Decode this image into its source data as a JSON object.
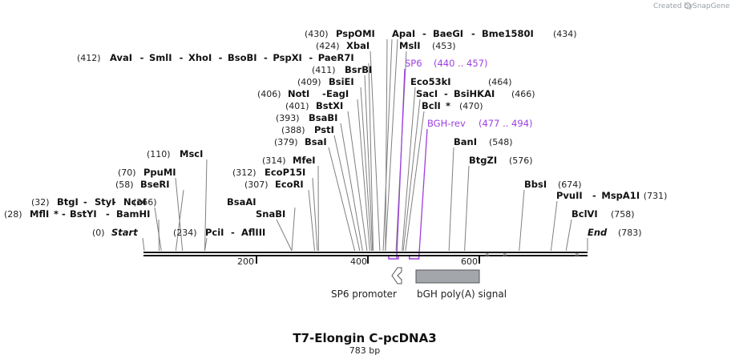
{
  "title": "T7-Elongin C-pcDNA3",
  "length_text": "783 bp",
  "watermark": {
    "prefix": "Created by",
    "brand": "SnapGene"
  },
  "backbone": {
    "start_label": "Start",
    "start_pos": "(0)",
    "end_label": "End",
    "end_pos": "(783)"
  },
  "ticks": [
    "200",
    "400",
    "600"
  ],
  "label_rows": [
    {
      "id": "r0",
      "items": [
        {
          "pos": "(430)"
        },
        {
          "name": "PspOMI"
        },
        {
          "name": "ApaI"
        },
        {
          "sep": "-"
        },
        {
          "name": "BaeGI"
        },
        {
          "sep": "-"
        },
        {
          "name": "Bme1580I"
        },
        {
          "pos": "(434)"
        }
      ]
    },
    {
      "id": "r1",
      "items": [
        {
          "pos": "(424)"
        },
        {
          "name": "XbaI"
        },
        {
          "name": "MslI"
        },
        {
          "pos": "(453)"
        }
      ]
    },
    {
      "id": "r2",
      "items": [
        {
          "pos": "(412)"
        },
        {
          "name": "AvaI"
        },
        {
          "sep": "-"
        },
        {
          "name": "SmlI"
        },
        {
          "sep": "-"
        },
        {
          "name": "XhoI"
        },
        {
          "sep": "-"
        },
        {
          "name": "BsoBI"
        },
        {
          "sep": "-"
        },
        {
          "name": "PspXI"
        },
        {
          "sep": "-"
        },
        {
          "name": "PaeR7I"
        }
      ]
    },
    {
      "id": "r3",
      "items": [
        {
          "pos": "(411)"
        },
        {
          "name": "BsrBI"
        }
      ]
    },
    {
      "id": "r4",
      "items": [
        {
          "pos": "(409)"
        },
        {
          "name": "BsiEI"
        },
        {
          "name": "Eco53kI"
        },
        {
          "pos": "(464)"
        }
      ]
    },
    {
      "id": "r5",
      "items": [
        {
          "pos": "(406)"
        },
        {
          "name": "NotI"
        },
        {
          "sep": "-"
        },
        {
          "name": "EagI"
        },
        {
          "name": "SacI"
        },
        {
          "sep": "-"
        },
        {
          "name": "BsiHKAI"
        },
        {
          "pos": "(466)"
        }
      ]
    },
    {
      "id": "r6",
      "items": [
        {
          "pos": "(401)"
        },
        {
          "name": "BstXI"
        },
        {
          "name": "BclI"
        },
        {
          "star": "*"
        },
        {
          "pos": "(470)"
        }
      ]
    },
    {
      "id": "r7",
      "items": [
        {
          "pos": "(393)"
        },
        {
          "name": "BsaBI"
        }
      ]
    },
    {
      "id": "r8",
      "items": [
        {
          "pos": "(388)"
        },
        {
          "name": "PstI"
        }
      ]
    },
    {
      "id": "r9",
      "items": [
        {
          "pos": "(379)"
        },
        {
          "name": "BsaI"
        },
        {
          "name": "BanI"
        },
        {
          "pos": "(548)"
        }
      ]
    },
    {
      "id": "r10",
      "items": [
        {
          "pos": "(110)"
        },
        {
          "name": "MscI"
        }
      ]
    },
    {
      "id": "r11",
      "items": [
        {
          "pos": "(314)"
        },
        {
          "name": "MfeI"
        },
        {
          "name": "BtgZI"
        },
        {
          "pos": "(576)"
        }
      ]
    },
    {
      "id": "r12",
      "items": [
        {
          "pos": "(70)"
        },
        {
          "name": "PpuMI"
        },
        {
          "pos": "(312)"
        },
        {
          "name": "EcoP15I"
        }
      ]
    },
    {
      "id": "r13",
      "items": [
        {
          "pos": "(58)"
        },
        {
          "name": "BseRI"
        },
        {
          "pos": "(307)"
        },
        {
          "name": "EcoRI"
        },
        {
          "name": "BbsI"
        },
        {
          "pos": "(674)"
        }
      ]
    },
    {
      "id": "r14",
      "items": [
        {
          "name": "PvuII"
        },
        {
          "sep": "-"
        },
        {
          "name": "MspA1I"
        },
        {
          "pos": "(731)"
        }
      ]
    },
    {
      "id": "r15",
      "items": [
        {
          "pos": "(32)"
        },
        {
          "name": "BtgI"
        },
        {
          "sep": "-"
        },
        {
          "name": "StyI"
        },
        {
          "sep": "-"
        },
        {
          "name": "NcoI"
        },
        {
          "pos": "(266)"
        },
        {
          "name": "BsaAI"
        }
      ]
    },
    {
      "id": "r16",
      "items": [
        {
          "pos": "(28)"
        },
        {
          "name": "MflI"
        },
        {
          "star": "*"
        },
        {
          "sep": "-"
        },
        {
          "name": "BstYI"
        },
        {
          "sep": "-"
        },
        {
          "name": "BamHI"
        },
        {
          "name": "SnaBI"
        },
        {
          "name": "BclVI"
        },
        {
          "pos": "(758)"
        }
      ]
    },
    {
      "id": "r17",
      "items": [
        {
          "pos": "(234)"
        },
        {
          "name": "PciI"
        },
        {
          "sep": "-"
        },
        {
          "name": "AflIII"
        }
      ]
    }
  ],
  "primers": [
    {
      "name": "SP6",
      "range": "(440 .. 457)",
      "start": 440,
      "end": 457
    },
    {
      "name": "BGH-rev",
      "range": "(477 .. 494)",
      "start": 477,
      "end": 494
    }
  ],
  "features": [
    {
      "name": "SP6 promoter",
      "start": 434,
      "end": 453,
      "direction": "reverse"
    },
    {
      "name": "bGH poly(A) signal",
      "start": 496,
      "end": 620,
      "direction": "none"
    }
  ],
  "cut_positions": [
    28,
    32,
    58,
    70,
    110,
    234,
    266,
    307,
    312,
    314,
    379,
    388,
    393,
    401,
    406,
    409,
    411,
    412,
    424,
    430,
    434,
    453,
    464,
    466,
    470,
    548,
    576,
    674,
    731,
    758
  ],
  "colors": {
    "line": "#7f7f7f",
    "primer": "#9d3fe0",
    "feature": "#a3a6ab",
    "backbone": "#111111"
  }
}
